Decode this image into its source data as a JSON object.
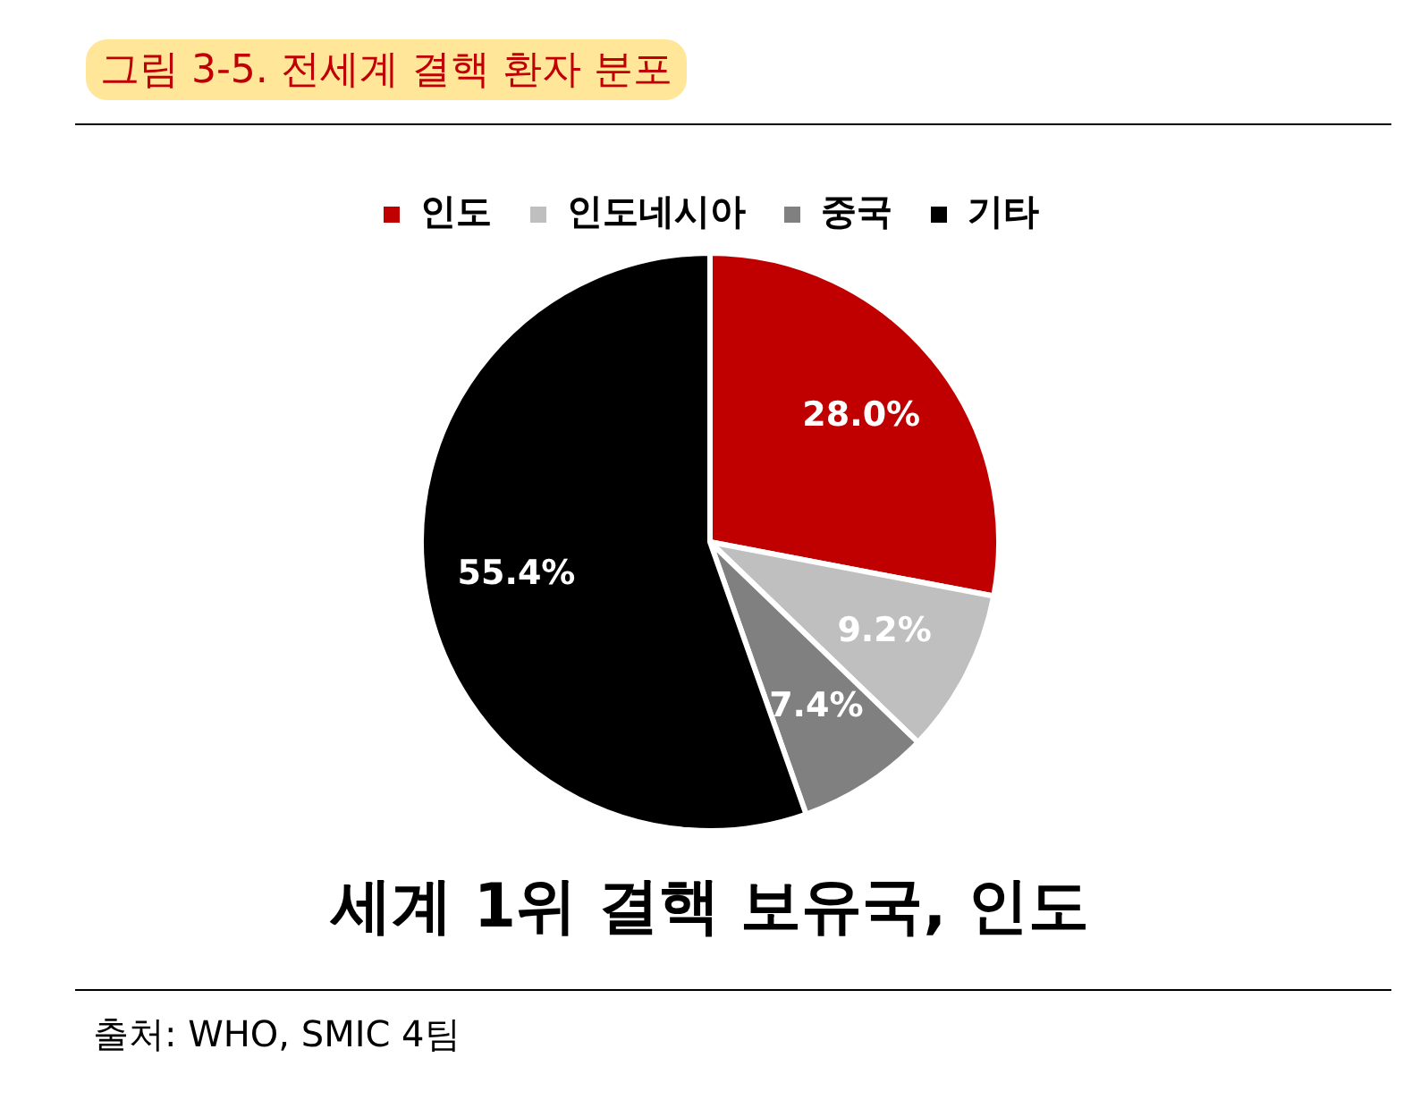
{
  "chart_data": {
    "type": "pie",
    "title": "그림 3-5. 전세계 결핵 환자 분포",
    "categories": [
      "인도",
      "인도네시아",
      "중국",
      "기타"
    ],
    "values": [
      28.0,
      9.2,
      7.4,
      55.4
    ],
    "colors": [
      "#c00000",
      "#bfbfbf",
      "#808080",
      "#000000"
    ],
    "value_labels": [
      "28.0%",
      "9.2%",
      "7.4%",
      "55.4%"
    ],
    "legend": "top",
    "annotations": [
      "세계 1위 결핵 보유국, 인도",
      "출처: WHO, SMIC 4팀"
    ]
  }
}
